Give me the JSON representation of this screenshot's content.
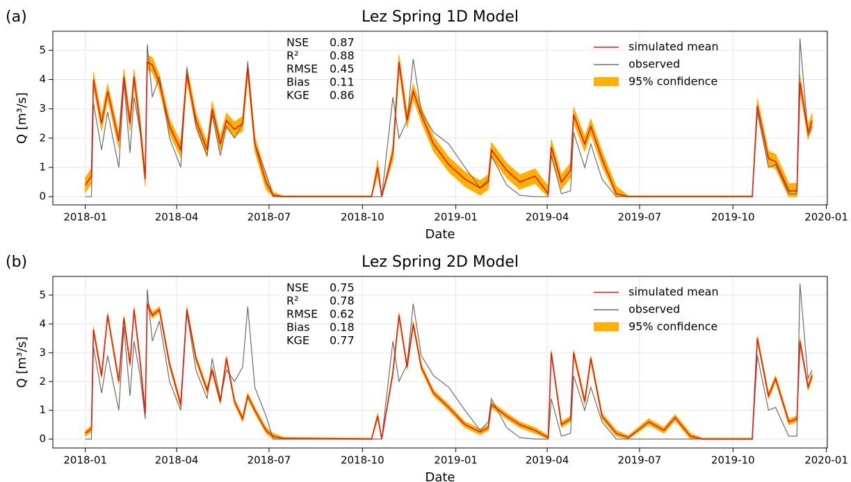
{
  "chart_data": [
    {
      "type": "line",
      "panel_label": "(a)",
      "title": "Lez Spring 1D Model",
      "xlabel": "Date",
      "ylabel": "Q [m³/s]",
      "xlim": [
        "2017-11-30",
        "2020-01-02"
      ],
      "ylim": [
        -0.28,
        5.65
      ],
      "yticks": [
        0,
        1,
        2,
        3,
        4,
        5
      ],
      "xticks": [
        "2018-01",
        "2018-04",
        "2018-07",
        "2018-10",
        "2019-01",
        "2019-04",
        "2019-07",
        "2019-10",
        "2020-01"
      ],
      "grid": true,
      "legend": "upper right",
      "stats": {
        "labels": [
          "NSE",
          "R²",
          "RMSE",
          "Bias",
          "KGE"
        ],
        "values": [
          0.87,
          0.88,
          0.45,
          0.11,
          0.86
        ]
      },
      "x": [
        "2018-01-01",
        "2018-01-07",
        "2018-01-09",
        "2018-01-17",
        "2018-01-23",
        "2018-02-03",
        "2018-02-08",
        "2018-02-14",
        "2018-02-18",
        "2018-02-24",
        "2018-03-01",
        "2018-03-03",
        "2018-03-08",
        "2018-03-15",
        "2018-03-25",
        "2018-04-05",
        "2018-04-11",
        "2018-04-20",
        "2018-05-01",
        "2018-05-06",
        "2018-05-14",
        "2018-05-20",
        "2018-05-28",
        "2018-06-05",
        "2018-06-10",
        "2018-06-17",
        "2018-06-28",
        "2018-07-05",
        "2018-07-15",
        "2018-10-10",
        "2018-10-16",
        "2018-10-20",
        "2018-10-31",
        "2018-11-06",
        "2018-11-14",
        "2018-11-20",
        "2018-11-28",
        "2018-12-10",
        "2018-12-25",
        "2019-01-10",
        "2019-01-25",
        "2019-02-02",
        "2019-02-05",
        "2019-02-20",
        "2019-03-05",
        "2019-03-20",
        "2019-04-02",
        "2019-04-05",
        "2019-04-15",
        "2019-04-24",
        "2019-04-27",
        "2019-05-08",
        "2019-05-14",
        "2019-05-25",
        "2019-06-08",
        "2019-06-20",
        "2019-07-10",
        "2019-07-25",
        "2019-08-05",
        "2019-08-20",
        "2019-09-01",
        "2019-10-20",
        "2019-10-25",
        "2019-11-05",
        "2019-11-12",
        "2019-11-25",
        "2019-12-03",
        "2019-12-06",
        "2019-12-14",
        "2019-12-18"
      ],
      "series": [
        {
          "name": "simulated mean",
          "color": "#e8180c",
          "values": [
            0.4,
            0.7,
            4.0,
            2.5,
            3.6,
            1.9,
            4.1,
            2.5,
            4.1,
            2.4,
            0.6,
            4.6,
            4.5,
            3.9,
            2.4,
            1.6,
            4.2,
            2.6,
            1.6,
            3.0,
            1.8,
            2.6,
            2.3,
            2.5,
            4.4,
            1.8,
            0.5,
            0.05,
            0,
            0,
            1.0,
            0,
            1.5,
            4.6,
            2.6,
            3.6,
            2.8,
            1.8,
            1.1,
            0.6,
            0.3,
            0.5,
            1.6,
            0.9,
            0.5,
            0.7,
            0.1,
            1.7,
            0.5,
            0.9,
            2.8,
            1.8,
            2.4,
            1.3,
            0.1,
            0,
            0,
            0,
            0,
            0,
            0,
            0,
            3.1,
            1.3,
            1.2,
            0.2,
            0.2,
            3.9,
            2.2,
            2.6
          ]
        },
        {
          "name": "observed",
          "color": "#6b6b6b",
          "values": [
            0,
            0,
            3.2,
            1.6,
            2.9,
            1.0,
            3.9,
            1.5,
            3.4,
            2.2,
            0.7,
            5.2,
            3.4,
            4.1,
            2.0,
            1.0,
            4.4,
            2.4,
            1.4,
            2.8,
            1.4,
            2.4,
            2.0,
            2.5,
            4.6,
            1.8,
            0.8,
            0,
            0,
            0,
            0,
            0,
            3.4,
            2.0,
            2.6,
            4.7,
            2.9,
            2.2,
            1.8,
            1.0,
            0.3,
            0.6,
            1.4,
            0.4,
            0.05,
            0,
            0,
            1.4,
            0.1,
            0.2,
            2.2,
            1.0,
            1.8,
            0.6,
            0,
            0,
            0,
            0,
            0,
            0,
            0,
            0,
            2.9,
            1.0,
            1.1,
            0.1,
            0.1,
            5.4,
            2.1,
            2.4
          ]
        },
        {
          "name": "95% confidence",
          "color": "#ffb000",
          "lower": [
            0.15,
            0.45,
            3.75,
            2.25,
            3.35,
            1.65,
            3.85,
            2.25,
            3.85,
            2.15,
            0.35,
            4.35,
            4.25,
            3.65,
            2.15,
            1.35,
            3.95,
            2.35,
            1.35,
            2.75,
            1.55,
            2.35,
            2.05,
            2.25,
            4.15,
            1.55,
            0.25,
            0,
            0,
            0,
            0.75,
            0,
            1.25,
            4.35,
            2.35,
            3.35,
            2.55,
            1.55,
            0.85,
            0.35,
            0.05,
            0.25,
            1.35,
            0.65,
            0.25,
            0.45,
            0,
            1.45,
            0.25,
            0.65,
            2.55,
            1.55,
            2.15,
            1.05,
            0,
            0,
            0,
            0,
            0,
            0,
            0,
            0,
            2.85,
            1.05,
            0.95,
            0,
            0,
            3.65,
            1.95,
            2.35
          ],
          "upper": [
            0.65,
            0.95,
            4.25,
            2.75,
            3.85,
            2.15,
            4.35,
            2.75,
            4.35,
            2.65,
            0.85,
            4.85,
            4.75,
            4.15,
            2.65,
            1.85,
            4.45,
            2.85,
            1.85,
            3.25,
            2.05,
            2.85,
            2.55,
            2.75,
            4.65,
            2.05,
            0.75,
            0.15,
            0.03,
            0.03,
            1.25,
            0.03,
            1.75,
            4.85,
            2.85,
            3.85,
            3.05,
            2.05,
            1.35,
            0.85,
            0.55,
            0.75,
            1.85,
            1.15,
            0.75,
            0.95,
            0.35,
            1.95,
            0.75,
            1.15,
            3.05,
            2.05,
            2.65,
            1.55,
            0.35,
            0.03,
            0.03,
            0.03,
            0.03,
            0.03,
            0.03,
            0.03,
            3.35,
            1.55,
            1.45,
            0.45,
            0.45,
            4.15,
            2.45,
            2.85
          ]
        }
      ]
    },
    {
      "type": "line",
      "panel_label": "(b)",
      "title": "Lez Spring 2D Model",
      "xlabel": "Date",
      "ylabel": "Q [m³/s]",
      "xlim": [
        "2017-11-30",
        "2020-01-02"
      ],
      "ylim": [
        -0.31,
        5.65
      ],
      "yticks": [
        0,
        1,
        2,
        3,
        4,
        5
      ],
      "xticks": [
        "2018-01",
        "2018-04",
        "2018-07",
        "2018-10",
        "2019-01",
        "2019-04",
        "2019-07",
        "2019-10",
        "2020-01"
      ],
      "grid": true,
      "legend": "upper right",
      "stats": {
        "labels": [
          "NSE",
          "R²",
          "RMSE",
          "Bias",
          "KGE"
        ],
        "values": [
          0.75,
          0.78,
          0.62,
          0.18,
          0.77
        ]
      },
      "x": [
        "2018-01-01",
        "2018-01-07",
        "2018-01-09",
        "2018-01-17",
        "2018-01-23",
        "2018-02-03",
        "2018-02-08",
        "2018-02-14",
        "2018-02-18",
        "2018-02-24",
        "2018-03-01",
        "2018-03-03",
        "2018-03-08",
        "2018-03-15",
        "2018-03-25",
        "2018-04-05",
        "2018-04-11",
        "2018-04-20",
        "2018-05-01",
        "2018-05-06",
        "2018-05-14",
        "2018-05-20",
        "2018-05-28",
        "2018-06-05",
        "2018-06-10",
        "2018-06-17",
        "2018-06-28",
        "2018-07-05",
        "2018-07-15",
        "2018-10-10",
        "2018-10-16",
        "2018-10-20",
        "2018-10-31",
        "2018-11-06",
        "2018-11-14",
        "2018-11-20",
        "2018-11-28",
        "2018-12-10",
        "2018-12-25",
        "2019-01-10",
        "2019-01-25",
        "2019-02-02",
        "2019-02-05",
        "2019-02-20",
        "2019-03-05",
        "2019-03-20",
        "2019-04-02",
        "2019-04-05",
        "2019-04-15",
        "2019-04-24",
        "2019-04-27",
        "2019-05-08",
        "2019-05-14",
        "2019-05-25",
        "2019-06-08",
        "2019-06-20",
        "2019-07-10",
        "2019-07-25",
        "2019-08-05",
        "2019-08-20",
        "2019-09-01",
        "2019-10-20",
        "2019-10-25",
        "2019-11-05",
        "2019-11-12",
        "2019-11-25",
        "2019-12-03",
        "2019-12-06",
        "2019-12-14",
        "2019-12-18"
      ],
      "series": [
        {
          "name": "simulated mean",
          "color": "#e8180c",
          "values": [
            0.2,
            0.35,
            3.8,
            2.2,
            4.3,
            2.0,
            4.2,
            2.6,
            4.5,
            2.7,
            0.9,
            4.7,
            4.3,
            4.5,
            2.6,
            1.2,
            4.5,
            2.8,
            1.7,
            2.4,
            1.3,
            2.8,
            1.3,
            0.7,
            1.5,
            1.0,
            0.3,
            0.1,
            0.02,
            0,
            0.8,
            0,
            2.3,
            4.3,
            2.5,
            4.0,
            2.5,
            1.6,
            1.1,
            0.5,
            0.25,
            0.4,
            1.2,
            0.8,
            0.5,
            0.3,
            0.05,
            3.0,
            0.5,
            0.7,
            3.0,
            1.3,
            2.8,
            0.8,
            0.2,
            0.05,
            0.6,
            0.3,
            0.75,
            0.1,
            0,
            0,
            3.5,
            1.5,
            2.1,
            0.6,
            0.7,
            3.4,
            1.8,
            2.2
          ]
        },
        {
          "name": "observed",
          "color": "#6b6b6b",
          "values": [
            0,
            0,
            3.2,
            1.6,
            2.9,
            1.0,
            3.9,
            1.5,
            3.4,
            2.2,
            0.7,
            5.2,
            3.4,
            4.1,
            2.0,
            1.0,
            4.4,
            2.4,
            1.4,
            2.8,
            1.4,
            2.4,
            2.0,
            2.5,
            4.6,
            1.8,
            0.8,
            0,
            0,
            0,
            0,
            0,
            3.4,
            2.0,
            2.6,
            4.7,
            2.9,
            2.2,
            1.8,
            1.0,
            0.3,
            0.6,
            1.4,
            0.4,
            0.05,
            0,
            0,
            1.4,
            0.1,
            0.2,
            2.2,
            1.0,
            1.8,
            0.6,
            0,
            0,
            0,
            0,
            0,
            0,
            0,
            0,
            2.9,
            1.0,
            1.1,
            0.1,
            0.1,
            5.4,
            2.1,
            2.4
          ]
        },
        {
          "name": "95% confidence",
          "color": "#ffb000",
          "lower": [
            0.1,
            0.25,
            3.7,
            2.1,
            4.2,
            1.9,
            4.1,
            2.5,
            4.4,
            2.6,
            0.8,
            4.6,
            4.2,
            4.4,
            2.5,
            1.1,
            4.4,
            2.7,
            1.6,
            2.3,
            1.2,
            2.7,
            1.2,
            0.6,
            1.4,
            0.9,
            0.2,
            0,
            0,
            0,
            0.7,
            0,
            2.2,
            4.2,
            2.4,
            3.9,
            2.4,
            1.5,
            1.0,
            0.4,
            0.15,
            0.3,
            1.1,
            0.7,
            0.4,
            0.2,
            0,
            2.9,
            0.4,
            0.6,
            2.9,
            1.2,
            2.7,
            0.7,
            0.1,
            0,
            0.5,
            0.2,
            0.65,
            0,
            0,
            0,
            3.4,
            1.4,
            2.0,
            0.5,
            0.6,
            3.3,
            1.7,
            2.1
          ],
          "upper": [
            0.3,
            0.45,
            3.9,
            2.3,
            4.4,
            2.1,
            4.3,
            2.7,
            4.6,
            2.8,
            1.0,
            4.8,
            4.4,
            4.6,
            2.7,
            1.3,
            4.6,
            2.9,
            1.8,
            2.5,
            1.4,
            2.9,
            1.4,
            0.8,
            1.6,
            1.1,
            0.4,
            0.2,
            0.06,
            0.03,
            0.9,
            0.03,
            2.4,
            4.4,
            2.6,
            4.1,
            2.6,
            1.7,
            1.2,
            0.6,
            0.35,
            0.5,
            1.3,
            0.9,
            0.6,
            0.4,
            0.12,
            3.1,
            0.6,
            0.8,
            3.1,
            1.4,
            2.9,
            0.9,
            0.3,
            0.12,
            0.7,
            0.4,
            0.85,
            0.2,
            0.03,
            0.03,
            3.6,
            1.6,
            2.2,
            0.7,
            0.8,
            3.5,
            1.9,
            2.3
          ]
        }
      ]
    }
  ]
}
